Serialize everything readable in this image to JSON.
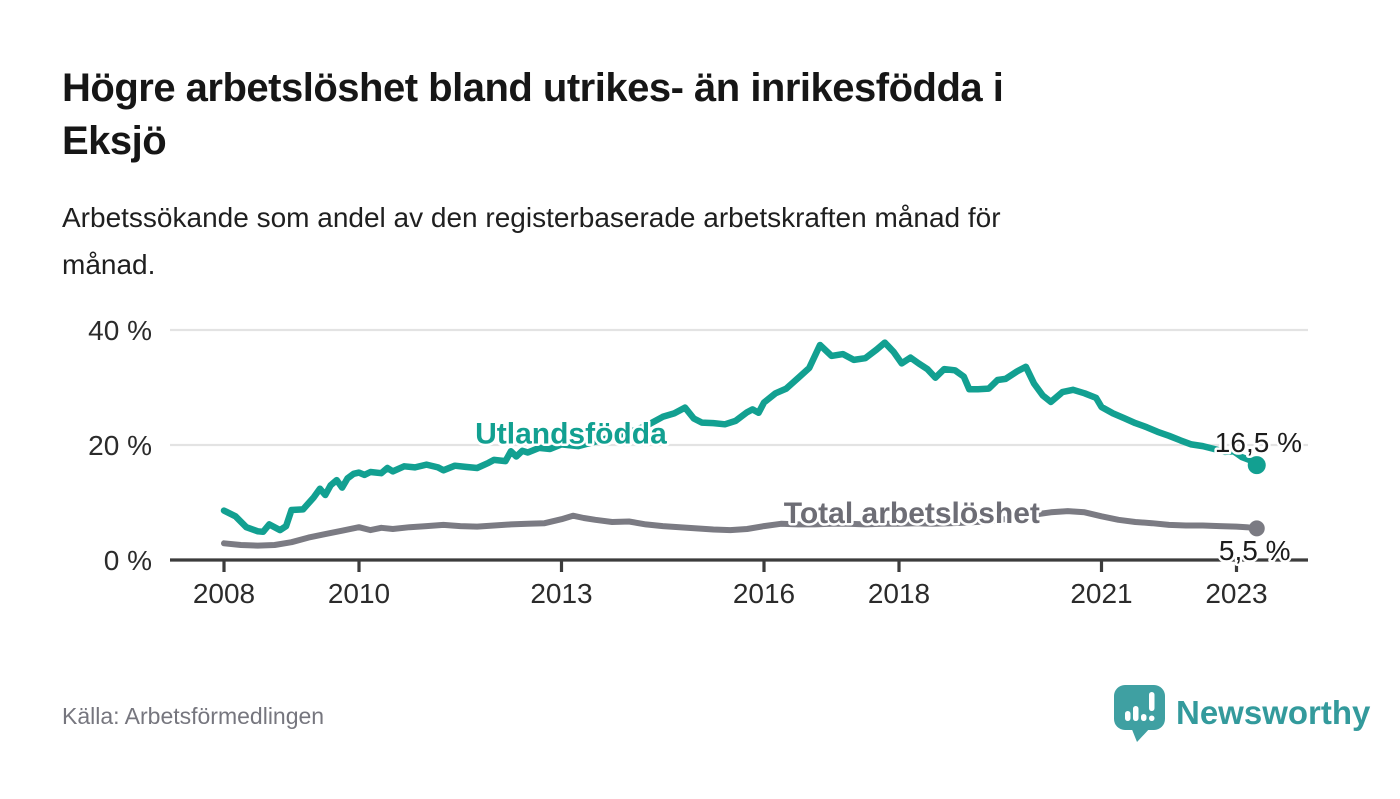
{
  "header": {
    "title_lines": [
      "Högre arbetslöshet bland utrikes- än inrikesfödda i",
      "Eksjö"
    ],
    "subtitle_lines": [
      "Arbetssökande som andel av den registerbaserade arbetskraften månad för",
      "månad."
    ]
  },
  "chart_data": {
    "type": "line",
    "title": "Högre arbetslöshet bland utrikes- än inrikesfödda i Eksjö",
    "subtitle": "Arbetssökande som andel av den registerbaserade arbetskraften månad för månad.",
    "xlabel": "",
    "ylabel": "",
    "grid": "horizontal",
    "legend_position": "inline-labels",
    "x_axis": {
      "ticks": [
        2008,
        2010,
        2013,
        2016,
        2018,
        2021,
        2023
      ],
      "range": [
        2007.2,
        2024.05
      ]
    },
    "y_axis": {
      "unit": "%",
      "range": [
        0,
        40
      ],
      "ticks": [
        {
          "value": 0,
          "label": "0 %"
        },
        {
          "value": 20,
          "label": "20 %"
        },
        {
          "value": 40,
          "label": "40 %"
        }
      ]
    },
    "series": [
      {
        "id": "utlandsfodda",
        "name": "Utlandsfödda",
        "color": "#12a091",
        "line_width": 6.5,
        "end_dot_radius": 9,
        "end_label": "16,5 %",
        "end_value": 16.5,
        "x": [
          2008.0,
          2008.17,
          2008.33,
          2008.5,
          2008.58,
          2008.67,
          2008.83,
          2008.92,
          2009.0,
          2009.17,
          2009.33,
          2009.42,
          2009.5,
          2009.58,
          2009.67,
          2009.75,
          2009.83,
          2009.92,
          2010.0,
          2010.08,
          2010.17,
          2010.33,
          2010.42,
          2010.5,
          2010.67,
          2010.83,
          2011.0,
          2011.17,
          2011.25,
          2011.42,
          2011.58,
          2011.75,
          2011.92,
          2012.0,
          2012.17,
          2012.25,
          2012.33,
          2012.42,
          2012.5,
          2012.67,
          2012.83,
          2013.0,
          2013.25,
          2013.5,
          2013.75,
          2014.0,
          2014.25,
          2014.5,
          2014.67,
          2014.83,
          2014.96,
          2015.08,
          2015.25,
          2015.42,
          2015.58,
          2015.75,
          2015.83,
          2015.92,
          2016.0,
          2016.17,
          2016.33,
          2016.5,
          2016.67,
          2016.83,
          2017.0,
          2017.17,
          2017.33,
          2017.5,
          2017.67,
          2017.79,
          2017.92,
          2018.04,
          2018.17,
          2018.29,
          2018.42,
          2018.54,
          2018.67,
          2018.83,
          2018.96,
          2019.04,
          2019.17,
          2019.33,
          2019.46,
          2019.58,
          2019.75,
          2019.88,
          2020.0,
          2020.13,
          2020.25,
          2020.42,
          2020.58,
          2020.75,
          2020.92,
          2021.0,
          2021.17,
          2021.33,
          2021.5,
          2021.67,
          2021.83,
          2022.0,
          2022.17,
          2022.33,
          2022.5,
          2022.67,
          2022.83,
          2022.96,
          2023.08,
          2023.21,
          2023.3
        ],
        "values": [
          8.6,
          7.6,
          5.7,
          5.0,
          4.9,
          6.2,
          5.2,
          5.9,
          8.7,
          8.8,
          10.9,
          12.4,
          11.3,
          13.0,
          13.9,
          12.6,
          14.2,
          15.0,
          15.2,
          14.8,
          15.3,
          15.1,
          16.0,
          15.4,
          16.3,
          16.1,
          16.6,
          16.1,
          15.6,
          16.4,
          16.2,
          16.0,
          16.9,
          17.4,
          17.2,
          18.9,
          18.0,
          19.0,
          18.7,
          19.5,
          19.3,
          20.1,
          19.8,
          20.6,
          21.4,
          22.2,
          23.3,
          24.9,
          25.5,
          26.5,
          24.6,
          23.9,
          23.8,
          23.6,
          24.2,
          25.7,
          26.2,
          25.6,
          27.4,
          29.0,
          29.8,
          31.6,
          33.4,
          37.4,
          35.5,
          35.8,
          34.8,
          35.1,
          36.6,
          37.8,
          36.2,
          34.2,
          35.2,
          34.2,
          33.2,
          31.7,
          33.2,
          33.0,
          31.9,
          29.7,
          29.7,
          29.8,
          31.3,
          31.5,
          32.8,
          33.6,
          30.7,
          28.6,
          27.5,
          29.2,
          29.6,
          29.0,
          28.2,
          26.6,
          25.5,
          24.7,
          23.8,
          23.1,
          22.3,
          21.6,
          20.8,
          20.1,
          19.8,
          19.3,
          18.8,
          18.9,
          17.9,
          17.3,
          16.5
        ]
      },
      {
        "id": "total",
        "name": "Total arbetslöshet",
        "color": "#7b7b83",
        "line_width": 6,
        "end_dot_radius": 8,
        "end_label": "5,5 %",
        "end_value": 5.5,
        "x": [
          2008.0,
          2008.25,
          2008.5,
          2008.75,
          2009.0,
          2009.25,
          2009.5,
          2009.75,
          2010.0,
          2010.17,
          2010.33,
          2010.5,
          2010.75,
          2011.0,
          2011.25,
          2011.5,
          2011.75,
          2012.0,
          2012.25,
          2012.5,
          2012.75,
          2013.0,
          2013.17,
          2013.33,
          2013.5,
          2013.75,
          2014.0,
          2014.25,
          2014.5,
          2014.75,
          2015.0,
          2015.25,
          2015.5,
          2015.75,
          2016.0,
          2016.25,
          2016.5,
          2016.75,
          2017.0,
          2017.25,
          2017.5,
          2017.75,
          2018.0,
          2018.25,
          2018.5,
          2018.75,
          2019.0,
          2019.25,
          2019.5,
          2019.75,
          2020.0,
          2020.25,
          2020.5,
          2020.75,
          2021.0,
          2021.25,
          2021.5,
          2021.75,
          2022.0,
          2022.25,
          2022.5,
          2022.75,
          2023.0,
          2023.15,
          2023.3
        ],
        "values": [
          2.9,
          2.6,
          2.5,
          2.6,
          3.1,
          3.9,
          4.5,
          5.1,
          5.7,
          5.2,
          5.6,
          5.4,
          5.7,
          5.9,
          6.1,
          5.9,
          5.8,
          6.0,
          6.2,
          6.3,
          6.4,
          7.1,
          7.7,
          7.3,
          7.0,
          6.6,
          6.7,
          6.2,
          5.9,
          5.7,
          5.5,
          5.3,
          5.2,
          5.4,
          5.9,
          6.3,
          6.2,
          6.2,
          6.3,
          6.3,
          6.2,
          6.3,
          6.3,
          6.4,
          6.3,
          6.4,
          6.5,
          6.7,
          7.0,
          7.4,
          7.9,
          8.3,
          8.5,
          8.3,
          7.6,
          7.0,
          6.6,
          6.4,
          6.1,
          6.0,
          6.0,
          5.9,
          5.8,
          5.7,
          5.5
        ]
      }
    ],
    "annotations": [
      {
        "text": "Utlandsfödda",
        "year": 2013.14,
        "pct": 20.3,
        "anchor": "middle",
        "color": "#12a091",
        "size": 30,
        "weight": "bold",
        "halo": 5
      },
      {
        "text": "Total arbetslöshet",
        "year": 2018.19,
        "pct": 6.4,
        "anchor": "middle",
        "color": "#6d6d75",
        "size": 30,
        "weight": "bold",
        "halo": 5
      },
      {
        "text": "16,5 %",
        "year": 2023.97,
        "pct": 18.8,
        "anchor": "end",
        "color": "#1c1c1c",
        "size": 28,
        "weight": "normal",
        "halo": 5
      },
      {
        "text": "5,5 %",
        "year": 2023.8,
        "pct": 0.0,
        "anchor": "end",
        "color": "#1c1c1c",
        "size": 28,
        "weight": "normal",
        "halo": 5
      }
    ],
    "style": {
      "grid_color": "#e3e3e3",
      "axis_color": "#3c3c3c",
      "tick_label_color": "#2b2b2b"
    }
  },
  "footer": {
    "source": "Källa: Arbetsförmedlingen",
    "brand": "Newsworthy",
    "logo_color": "#3fa0a2",
    "brand_text_color": "#339a9c"
  }
}
